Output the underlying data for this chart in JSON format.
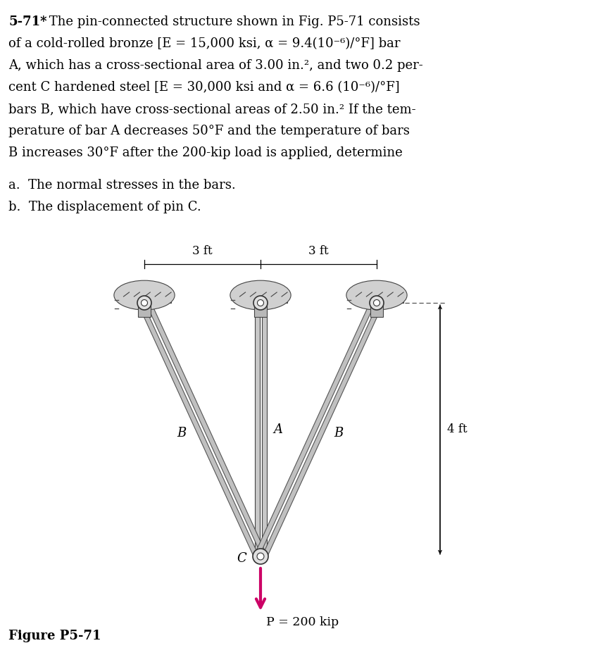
{
  "bg_color": "#ffffff",
  "text_color": "#000000",
  "bar_fill": "#c8c8c8",
  "bar_edge": "#444444",
  "support_fill": "#b0b0b0",
  "support_edge": "#444444",
  "pin_fill": "#e0e0e0",
  "pin_edge": "#333333",
  "arrow_color": "#cc0066",
  "dim_color": "#000000",
  "line1_bold": "5-71*",
  "line1_rest": " The pin-connected structure shown in Fig. P5-71 consists",
  "line2": "    of a cold-rolled bronze [E = 15,000 ksi, α = 9.4(10⁻⁶)/°F] bar",
  "line3": "    A, which has a cross-sectional area of 3.00 in.², and two 0.2 per-",
  "line4": "    cent C hardened steel [E = 30,000 ksi and α = 6.6 (10⁻⁶)/°F]",
  "line5": "    bars B, which have cross-sectional areas of 2.50 in.² If the tem-",
  "line6": "    perature of bar A decreases 50°F and the temperature of bars",
  "line7": "    B increases 30°F after the 200-kip load is applied, determine",
  "line8": "a.  The normal stresses in the bars.",
  "line9": "b.  The displacement of pin C.",
  "figure_label": "Figure P5-71",
  "label_A": "A",
  "label_B1": "B",
  "label_B2": "B",
  "label_C": "C",
  "dim_3ft": "3 ft",
  "dim_4ft": "4 ft",
  "load_label": "P = 200 kip"
}
